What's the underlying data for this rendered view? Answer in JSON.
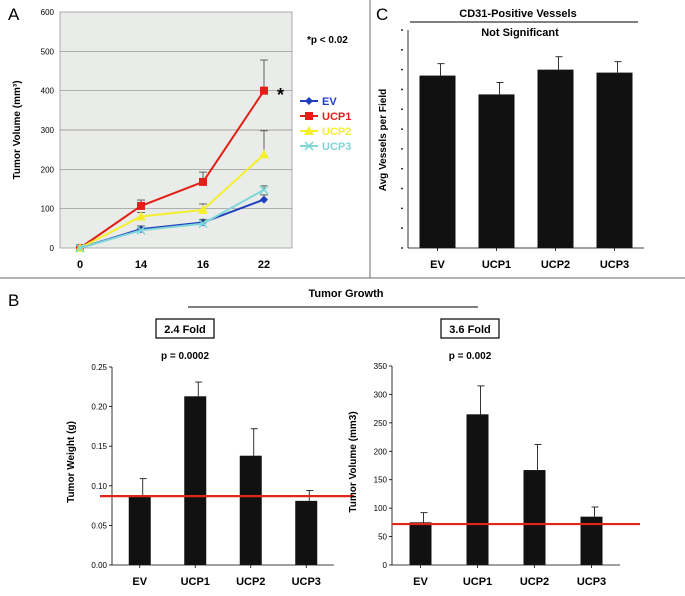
{
  "panels": {
    "a": "A",
    "b": "B",
    "c": "C"
  },
  "annotations": {
    "significance": "*p < 0.02",
    "star": "*",
    "b_title": "Tumor Growth",
    "fold_left": "2.4 Fold",
    "fold_right": "3.6 Fold",
    "p_left": "p = 0.0002",
    "p_right": "p = 0.002",
    "c_title": "CD31-Positive Vessels",
    "c_subtitle": "Not Significant"
  },
  "colors": {
    "EV": "#1f3fbf",
    "UCP1": "#e32017",
    "UCP2": "#f4ef2a",
    "UCP3": "#7fd6d8",
    "bar": "#111111",
    "reference_line": "#e3241b",
    "plot_bg": "#e9ece8"
  },
  "chart_data": [
    {
      "id": "panelA",
      "type": "line",
      "title": "",
      "xlabel": "",
      "ylabel": "Tumor Volume (mm³)",
      "categories": [
        "0",
        "14",
        "16",
        "22"
      ],
      "ylim": [
        0,
        600
      ],
      "yticks": [
        "0",
        "100",
        "200",
        "300",
        "400",
        "500",
        "600"
      ],
      "grid": true,
      "legend": "right",
      "series": [
        {
          "name": "EV",
          "values": [
            0,
            48,
            65,
            123
          ],
          "errors": [
            0,
            8,
            8,
            12
          ],
          "marker": "diamond"
        },
        {
          "name": "UCP1",
          "values": [
            0,
            107,
            168,
            400
          ],
          "errors": [
            0,
            15,
            25,
            78
          ],
          "marker": "square"
        },
        {
          "name": "UCP2",
          "values": [
            0,
            80,
            97,
            238
          ],
          "errors": [
            0,
            10,
            15,
            60
          ],
          "marker": "triangle"
        },
        {
          "name": "UCP3",
          "values": [
            0,
            45,
            62,
            148
          ],
          "errors": [
            0,
            6,
            8,
            10
          ],
          "marker": "x"
        }
      ]
    },
    {
      "id": "panelB1",
      "type": "bar",
      "title": "",
      "xlabel": "",
      "ylabel": "Tumor Weight (g)",
      "categories": [
        "EV",
        "UCP1",
        "UCP2",
        "UCP3"
      ],
      "values": [
        0.087,
        0.213,
        0.138,
        0.081
      ],
      "errors": [
        0.022,
        0.018,
        0.034,
        0.013
      ],
      "ylim": [
        0,
        0.25
      ],
      "yticks": [
        "0.00",
        "0.05",
        "0.10",
        "0.15",
        "0.20",
        "0.25"
      ],
      "reference_line": 0.087,
      "grid": false
    },
    {
      "id": "panelB2",
      "type": "bar",
      "title": "",
      "xlabel": "",
      "ylabel": "Tumor Volume (mm3)",
      "categories": [
        "EV",
        "UCP1",
        "UCP2",
        "UCP3"
      ],
      "values": [
        75,
        265,
        167,
        85
      ],
      "errors": [
        17,
        50,
        45,
        17
      ],
      "ylim": [
        0,
        350
      ],
      "yticks": [
        "0",
        "50",
        "100",
        "150",
        "200",
        "250",
        "300",
        "350"
      ],
      "reference_line": 72,
      "grid": false
    },
    {
      "id": "panelC",
      "type": "bar",
      "title": "CD31-Positive Vessels",
      "xlabel": "",
      "ylabel": "Avg Vessels per Field",
      "categories": [
        "EV",
        "UCP1",
        "UCP2",
        "UCP3"
      ],
      "values": [
        8.7,
        7.75,
        9.0,
        8.85
      ],
      "errors": [
        0.6,
        0.6,
        0.65,
        0.55
      ],
      "ylim": [
        0,
        11
      ],
      "yticks": [
        "",
        "",
        "",
        "",
        "",
        "",
        "",
        "",
        "",
        "",
        "",
        ""
      ],
      "grid": false
    }
  ]
}
